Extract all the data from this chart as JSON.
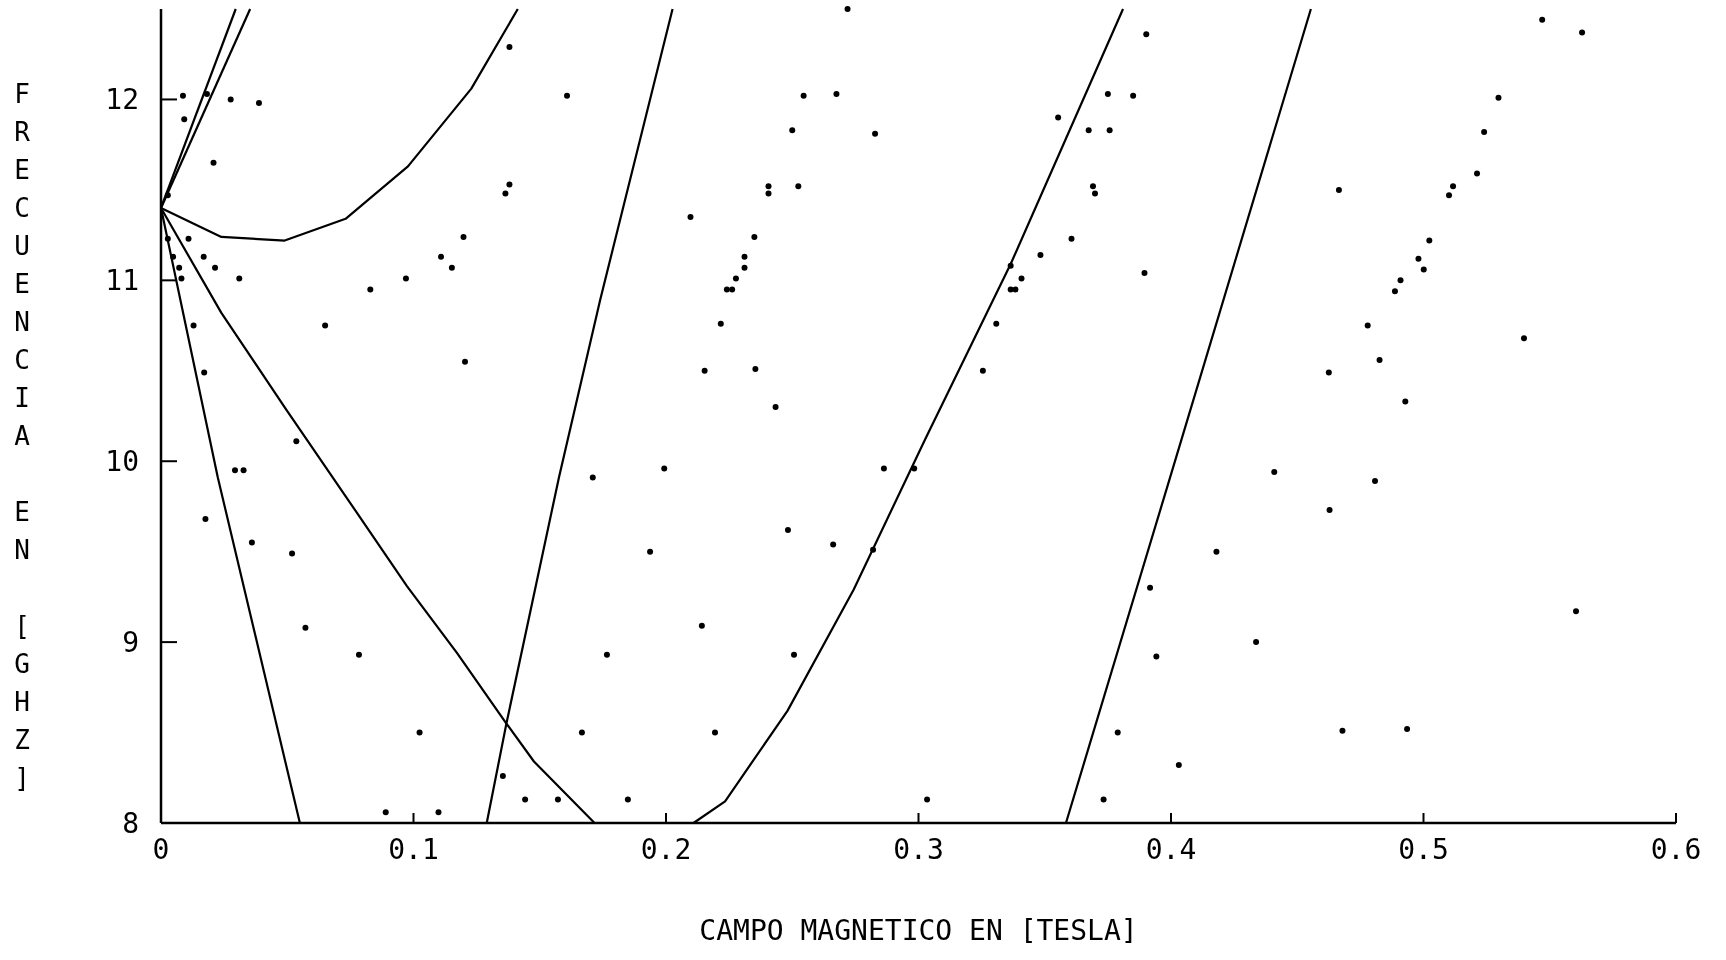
{
  "chart_data": {
    "type": "line",
    "xlabel": "CAMPO MAGNETICO EN [TESLA]",
    "ylabel": "FRECUENCIA EN [GHZ]",
    "xlim": [
      0,
      0.6
    ],
    "ylim": [
      8,
      12.5
    ],
    "xticks": [
      0,
      0.1,
      0.2,
      0.3,
      0.4,
      0.5,
      0.6
    ],
    "yticks": [
      8,
      9,
      10,
      11,
      12
    ],
    "series": [
      {
        "type": "line",
        "color": "#000000",
        "marker": "none",
        "x": [
          0,
          0.0296
        ],
        "values": [
          11.4,
          12.5
        ]
      },
      {
        "type": "line",
        "color": "#000000",
        "marker": "none",
        "x": [
          0,
          0.0353
        ],
        "values": [
          11.4,
          12.5
        ]
      },
      {
        "type": "line",
        "color": "#000000",
        "marker": "none",
        "x": [
          0,
          0.0239,
          0.049,
          0.0731,
          0.0978,
          0.1229,
          0.1413
        ],
        "values": [
          11.4,
          11.24,
          11.22,
          11.34,
          11.63,
          12.06,
          12.5
        ]
      },
      {
        "type": "line",
        "color": "#000000",
        "marker": "none",
        "x": [
          0,
          0.0239,
          0.0494,
          0.0749,
          0.0974,
          0.1172,
          0.1368,
          0.1477,
          0.1717
        ],
        "values": [
          11.4,
          10.82,
          10.29,
          9.77,
          9.31,
          8.94,
          8.55,
          8.34,
          8.0
        ]
      },
      {
        "type": "line",
        "color": "#000000",
        "marker": "none",
        "x": [
          0,
          0.0225,
          0.055
        ],
        "values": [
          11.4,
          9.91,
          8.0
        ]
      },
      {
        "type": "line",
        "color": "#000000",
        "marker": "none",
        "x": [
          0.129,
          0.1368,
          0.1576,
          0.1739,
          0.2026
        ],
        "values": [
          8.0,
          8.55,
          9.91,
          10.89,
          12.5
        ]
      },
      {
        "type": "line",
        "color": "#000000",
        "marker": "none",
        "x": [
          0.2109,
          0.2234,
          0.2481,
          0.2743,
          0.3026,
          0.3365,
          0.381
        ],
        "values": [
          8.0,
          8.12,
          8.62,
          9.29,
          10.12,
          11.09,
          12.5
        ]
      },
      {
        "type": "line",
        "color": "#000000",
        "marker": "none",
        "x": [
          0.3584,
          0.3992,
          0.4554
        ],
        "values": [
          8.0,
          9.89,
          12.5
        ]
      },
      {
        "type": "scatter",
        "color": "#000000",
        "marker": "circle",
        "x": [
          0.0087,
          0.0182,
          0.0092,
          0.0027,
          0.0027,
          0.0109,
          0.0048,
          0.0169,
          0.0072,
          0.0214,
          0.0081,
          0.031,
          0.0129,
          0.0171,
          0.065,
          0.0829,
          0.097,
          0.1109,
          0.1152,
          0.1198,
          0.1364,
          0.138,
          0.1608,
          0.0293,
          0.0327,
          0.0276,
          0.0388,
          0.0208,
          0.1204,
          0.138,
          0.0536,
          0.0519,
          0.0784,
          0.1024,
          0.1442,
          0.1572,
          0.1849,
          0.1667,
          0.1766,
          0.1937,
          0.0176,
          0.036,
          0.0572,
          0.1354,
          0.089,
          0.1099,
          0.171,
          0.2545,
          0.2675,
          0.25,
          0.2406,
          0.2406,
          0.2524,
          0.235,
          0.2311,
          0.2311,
          0.2277,
          0.2241,
          0.2262,
          0.2217,
          0.2153,
          0.1993,
          0.2863,
          0.2983,
          0.375,
          0.385,
          0.3674,
          0.3757,
          0.3691,
          0.3699,
          0.3606,
          0.3483,
          0.3365,
          0.3408,
          0.3365,
          0.3384,
          0.3308,
          0.3255,
          0.2828,
          0.2719,
          0.2097,
          0.2354,
          0.2434,
          0.3553,
          0.3902,
          0.3895,
          0.2194,
          0.2507,
          0.282,
          0.3034,
          0.3789,
          0.3942,
          0.2483,
          0.2662,
          0.2142,
          0.3917,
          0.3733,
          0.5297,
          0.524,
          0.5117,
          0.5101,
          0.5023,
          0.498,
          0.5001,
          0.4909,
          0.4887,
          0.4779,
          0.4625,
          0.4409,
          0.547,
          0.5628,
          0.4665,
          0.5212,
          0.4826,
          0.5398,
          0.4928,
          0.4808,
          0.418,
          0.4935,
          0.4628,
          0.4337,
          0.5604,
          0.4679,
          0.4031
        ],
        "values": [
          12.02,
          12.03,
          11.89,
          11.47,
          11.23,
          11.23,
          11.13,
          11.13,
          11.07,
          11.07,
          11.01,
          11.01,
          10.75,
          10.49,
          10.75,
          10.95,
          11.01,
          11.13,
          11.07,
          11.24,
          11.48,
          11.53,
          12.02,
          9.95,
          9.95,
          12.0,
          11.98,
          11.65,
          10.55,
          12.29,
          10.11,
          9.49,
          8.93,
          8.5,
          8.13,
          8.13,
          8.13,
          8.5,
          8.93,
          9.5,
          9.68,
          9.55,
          9.08,
          8.26,
          8.06,
          8.06,
          9.91,
          12.02,
          12.03,
          11.83,
          11.52,
          11.48,
          11.52,
          11.24,
          11.13,
          11.07,
          11.01,
          10.95,
          10.95,
          10.76,
          10.5,
          9.96,
          9.96,
          9.96,
          12.03,
          12.02,
          11.83,
          11.83,
          11.52,
          11.48,
          11.23,
          11.14,
          11.08,
          11.01,
          10.95,
          10.95,
          10.76,
          10.5,
          11.81,
          12.5,
          11.35,
          10.51,
          10.3,
          11.9,
          12.36,
          11.04,
          8.5,
          8.93,
          9.51,
          8.13,
          8.5,
          8.92,
          9.62,
          9.54,
          9.09,
          9.3,
          8.13,
          12.01,
          11.82,
          11.52,
          11.47,
          11.22,
          11.12,
          11.06,
          11.0,
          10.94,
          10.75,
          10.49,
          9.94,
          12.44,
          12.37,
          11.5,
          11.59,
          10.56,
          10.68,
          10.33,
          9.89,
          9.5,
          8.52,
          9.73,
          9.0,
          9.17,
          8.51,
          8.32
        ]
      }
    ]
  }
}
